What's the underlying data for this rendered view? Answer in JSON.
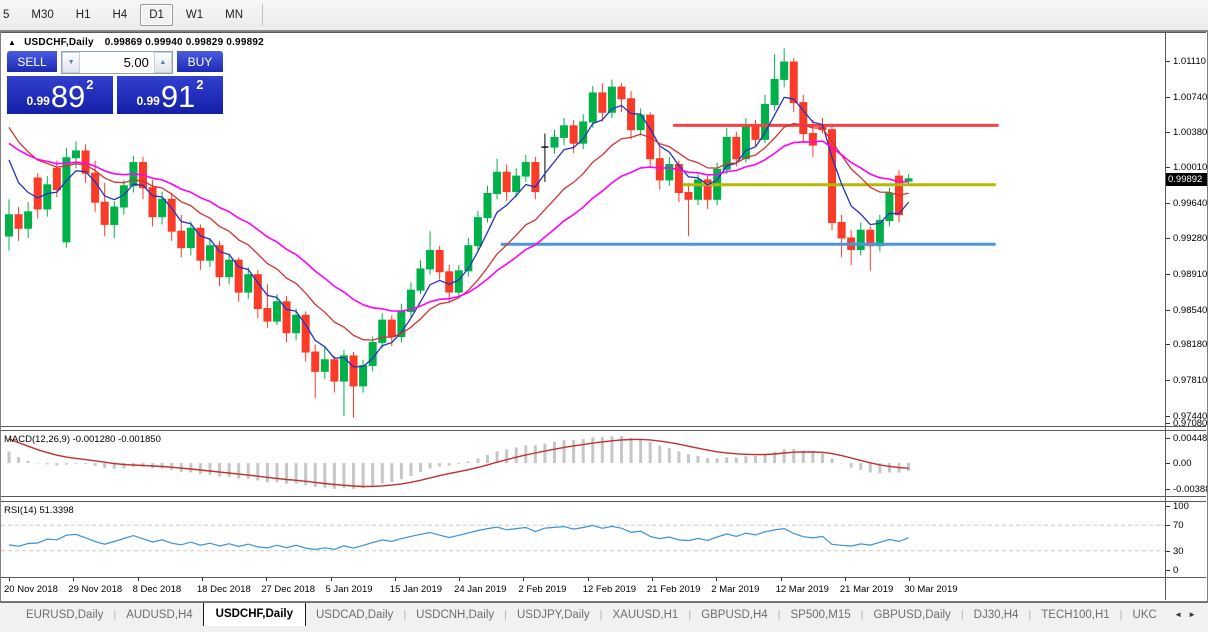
{
  "toolbar": {
    "timeframes": [
      {
        "label": "5",
        "selected": false
      },
      {
        "label": "M30",
        "selected": false
      },
      {
        "label": "H1",
        "selected": false
      },
      {
        "label": "H4",
        "selected": false
      },
      {
        "label": "D1",
        "selected": true
      },
      {
        "label": "W1",
        "selected": false
      },
      {
        "label": "MN",
        "selected": false
      }
    ]
  },
  "chart_window": {
    "collapse_icon": "▲",
    "title_symbol": "USDCHF,Daily",
    "title_ohlc": "0.99869 0.99940 0.99829 0.99892",
    "trade_widget": {
      "sell_label": "SELL",
      "buy_label": "BUY",
      "volume": "5.00",
      "spin_down_icon": "▼",
      "spin_up_icon": "▲",
      "sell_price": {
        "small": "0.99",
        "big": "89",
        "sup": "2"
      },
      "buy_price": {
        "small": "0.99",
        "big": "91",
        "sup": "2"
      }
    }
  },
  "macd_panel": {
    "label": "MACD(12,26,9) -0.001280 -0.001850",
    "axis_top": "0.004487",
    "axis_zero": "0.00",
    "axis_bottom": "-0.003883"
  },
  "rsi_panel": {
    "label": "RSI(14) 51.3398",
    "axis": [
      "100",
      "70",
      "30",
      "0"
    ]
  },
  "tabs": {
    "items": [
      "EURUSD,Daily",
      "AUDUSD,H4",
      "USDCHF,Daily",
      "USDCAD,Daily",
      "USDCNH,Daily",
      "USDJPY,Daily",
      "XAUUSD,H1",
      "GBPUSD,H4",
      "SP500,M15",
      "GBPUSD,Daily",
      "DJ30,H4",
      "TECH100,H1",
      "UKC"
    ],
    "selected": "USDCHF,Daily",
    "scroll_left_icon": "◄",
    "scroll_right_icon": "►"
  },
  "colors": {
    "bull": "#00b14a",
    "bear": "#fa3b28",
    "doji": "#000000",
    "ma_fast": "#2431c1",
    "ma_mid": "#d23434",
    "ma_slow": "#ff00ff",
    "macd_hist": "#c6c6c6",
    "macd_signal": "#c22f2f",
    "rsi": "#3b92d6",
    "hline_red": "#fb4040",
    "hline_olive": "#b4ba00",
    "hline_blue": "#4e96d9",
    "trade_blue": "#1f2db8"
  },
  "chart_data": {
    "type": "candlestick",
    "symbol": "USDCHF",
    "period": "Daily",
    "price_axis": {
      "min": 0.97335,
      "max": 1.014,
      "current": "0.99892",
      "current_price": 0.99892,
      "ticks": [
        "1.01110",
        "1.00740",
        "1.00380",
        "1.00010",
        "0.99640",
        "0.99280",
        "0.98910",
        "0.98540",
        "0.98180",
        "0.97810",
        "0.97440",
        "0.97080"
      ]
    },
    "date_ticks": [
      "20 Nov 2018",
      "29 Nov 2018",
      "8 Dec 2018",
      "18 Dec 2018",
      "27 Dec 2018",
      "5 Jan 2019",
      "15 Jan 2019",
      "24 Jan 2019",
      "2 Feb 2019",
      "12 Feb 2019",
      "21 Feb 2019",
      "2 Mar 2019",
      "12 Mar 2019",
      "21 Mar 2019",
      "30 Mar 2019"
    ],
    "moving_averages": [
      {
        "name": "fast-ma",
        "period": 5,
        "color_key": "ma_fast",
        "width": 1.3
      },
      {
        "name": "mid-ma",
        "period": 13,
        "color_key": "ma_mid",
        "width": 1.3
      },
      {
        "name": "slow-ma",
        "period": 24,
        "color_key": "ma_slow",
        "width": 1.6
      }
    ],
    "macd": {
      "fast": 12,
      "slow": 26,
      "signal": 9
    },
    "rsi": {
      "period": 14,
      "levels": [
        30,
        70
      ]
    },
    "hlines": [
      {
        "price": 1.00445,
        "color_key": "hline_red",
        "width": 3,
        "bar_start": 69.4,
        "bar_end": 103.4
      },
      {
        "price": 0.9983,
        "color_key": "hline_olive",
        "width": 3,
        "bar_start": 70.4,
        "bar_end": 103.1
      },
      {
        "price": 0.99215,
        "color_key": "hline_blue",
        "width": 3,
        "bar_start": 51.4,
        "bar_end": 103.1
      }
    ],
    "prehistory_closes": [
      0.985,
      0.9862,
      0.9875,
      0.9888,
      0.99,
      0.9912,
      0.9925,
      0.9938,
      0.995,
      0.9962,
      0.9975,
      0.9988,
      1.0,
      1.0012,
      1.0025,
      1.0038,
      1.005,
      1.0062,
      1.0075,
      1.0088,
      1.01,
      1.011,
      1.0118,
      1.0122,
      1.0125,
      1.0122,
      1.0115,
      1.008,
      1.002,
      0.996
    ],
    "candles": [
      [
        0.993,
        0.9968,
        0.9915,
        0.9952
      ],
      [
        0.9952,
        0.996,
        0.9925,
        0.9938
      ],
      [
        0.9938,
        0.9965,
        0.9928,
        0.9955
      ],
      [
        0.999,
        0.9995,
        0.9948,
        0.9958
      ],
      [
        0.9958,
        0.9992,
        0.995,
        0.9983
      ],
      [
        1.0,
        1.0008,
        0.997,
        0.9978
      ],
      [
        0.9924,
        1.0021,
        0.9918,
        1.0011
      ],
      [
        1.0011,
        1.0028,
        1.0,
        1.0018
      ],
      [
        1.0018,
        1.0025,
        0.9985,
        0.9995
      ],
      [
        0.9995,
        1.0008,
        0.9955,
        0.9965
      ],
      [
        0.9965,
        0.9985,
        0.993,
        0.9942
      ],
      [
        0.9942,
        0.9966,
        0.9928,
        0.996
      ],
      [
        0.996,
        0.9988,
        0.9952,
        0.9982
      ],
      [
        0.9982,
        1.0013,
        0.9975,
        1.0006
      ],
      [
        1.0006,
        1.0012,
        0.9968,
        0.998
      ],
      [
        0.998,
        0.9988,
        0.994,
        0.995
      ],
      [
        0.995,
        0.9976,
        0.9942,
        0.9968
      ],
      [
        0.9968,
        0.9975,
        0.9925,
        0.9935
      ],
      [
        0.9935,
        0.9952,
        0.9908,
        0.9918
      ],
      [
        0.9918,
        0.9945,
        0.991,
        0.9938
      ],
      [
        0.9938,
        0.9942,
        0.9895,
        0.9905
      ],
      [
        0.9905,
        0.9928,
        0.9898,
        0.992
      ],
      [
        0.992,
        0.9925,
        0.9878,
        0.9888
      ],
      [
        0.9888,
        0.9912,
        0.988,
        0.9905
      ],
      [
        0.9905,
        0.9908,
        0.9862,
        0.9872
      ],
      [
        0.9872,
        0.9898,
        0.9865,
        0.989
      ],
      [
        0.989,
        0.9895,
        0.9845,
        0.9855
      ],
      [
        0.9855,
        0.988,
        0.9835,
        0.9842
      ],
      [
        0.9842,
        0.987,
        0.9838,
        0.9862
      ],
      [
        0.9862,
        0.9868,
        0.982,
        0.983
      ],
      [
        0.983,
        0.9855,
        0.9822,
        0.9848
      ],
      [
        0.9848,
        0.9852,
        0.98,
        0.981
      ],
      [
        0.981,
        0.9818,
        0.9762,
        0.979
      ],
      [
        0.979,
        0.9815,
        0.9782,
        0.9802
      ],
      [
        0.9802,
        0.9806,
        0.9768,
        0.978
      ],
      [
        0.978,
        0.9812,
        0.9744,
        0.9806
      ],
      [
        0.9806,
        0.981,
        0.9742,
        0.9775
      ],
      [
        0.9775,
        0.9802,
        0.9768,
        0.9796
      ],
      [
        0.9796,
        0.9826,
        0.979,
        0.982
      ],
      [
        0.982,
        0.985,
        0.9814,
        0.9843
      ],
      [
        0.9843,
        0.9848,
        0.9816,
        0.9826
      ],
      [
        0.9826,
        0.986,
        0.982,
        0.9852
      ],
      [
        0.9852,
        0.9882,
        0.9846,
        0.9874
      ],
      [
        0.9874,
        0.9905,
        0.987,
        0.9896
      ],
      [
        0.9896,
        0.9935,
        0.989,
        0.9915
      ],
      [
        0.9915,
        0.992,
        0.9885,
        0.9893
      ],
      [
        0.9893,
        0.99,
        0.9862,
        0.9872
      ],
      [
        0.9872,
        0.99,
        0.9868,
        0.9894
      ],
      [
        0.9894,
        0.9928,
        0.9888,
        0.992
      ],
      [
        0.992,
        0.9956,
        0.9915,
        0.9949
      ],
      [
        0.9949,
        0.9982,
        0.9944,
        0.9974
      ],
      [
        0.9974,
        1.001,
        0.9968,
        0.9996
      ],
      [
        0.9996,
        1.0004,
        0.9966,
        0.9976
      ],
      [
        0.9976,
        1.0,
        0.997,
        0.9992
      ],
      [
        0.9992,
        1.0014,
        0.9986,
        1.0006
      ],
      [
        1.0006,
        1.0012,
        0.9968,
        0.9976
      ],
      [
        1.0022,
        1.0036,
        0.9986,
        1.0022
      ],
      [
        1.0022,
        1.004,
        1.0015,
        1.0032
      ],
      [
        1.0032,
        1.0052,
        1.0024,
        1.0044
      ],
      [
        1.0044,
        1.005,
        1.0016,
        1.0026
      ],
      [
        1.0026,
        1.0056,
        1.002,
        1.0048
      ],
      [
        1.0048,
        1.0085,
        1.0042,
        1.0078
      ],
      [
        1.0078,
        1.0088,
        1.0048,
        1.0058
      ],
      [
        1.0058,
        1.0092,
        1.0052,
        1.0084
      ],
      [
        1.0084,
        1.0088,
        1.0058,
        1.0072
      ],
      [
        1.0072,
        1.008,
        1.003,
        1.004
      ],
      [
        1.004,
        1.0062,
        1.0034,
        1.0055
      ],
      [
        1.0055,
        1.0058,
        1.0002,
        1.001
      ],
      [
        1.001,
        1.0022,
        0.9978,
        0.9988
      ],
      [
        0.9988,
        1.0012,
        0.9982,
        1.0004
      ],
      [
        1.0004,
        1.0008,
        0.9965,
        0.9975
      ],
      [
        0.9975,
        0.9985,
        0.993,
        0.9968
      ],
      [
        0.9968,
        0.9994,
        0.9962,
        0.9988
      ],
      [
        0.9988,
        0.9992,
        0.9958,
        0.9968
      ],
      [
        0.9968,
        1.0006,
        0.9962,
        0.9999
      ],
      [
        0.9999,
        1.0042,
        0.9994,
        1.0032
      ],
      [
        1.0032,
        1.0038,
        1.0002,
        1.001
      ],
      [
        1.001,
        1.0052,
        1.0006,
        1.0045
      ],
      [
        1.0045,
        1.005,
        1.0022,
        1.003
      ],
      [
        1.003,
        1.0076,
        1.0026,
        1.0066
      ],
      [
        1.0066,
        1.0118,
        1.006,
        1.0092
      ],
      [
        1.0092,
        1.0124,
        1.0084,
        1.011
      ],
      [
        1.011,
        1.0114,
        1.0058,
        1.0068
      ],
      [
        1.0068,
        1.0076,
        1.0028,
        1.0036
      ],
      [
        1.0036,
        1.005,
        1.0012,
        1.0024
      ],
      [
        1.0044,
        1.0052,
        1.0036,
        1.004
      ],
      [
        1.004,
        1.0046,
        0.9936,
        0.9944
      ],
      [
        0.9944,
        0.9952,
        0.9908,
        0.9928
      ],
      [
        0.9928,
        0.9936,
        0.99,
        0.9916
      ],
      [
        0.9916,
        0.9944,
        0.991,
        0.9936
      ],
      [
        0.9936,
        0.994,
        0.9894,
        0.992
      ],
      [
        0.992,
        0.9952,
        0.9914,
        0.9946
      ],
      [
        0.9946,
        0.998,
        0.994,
        0.9974
      ],
      [
        0.9992,
        0.9998,
        0.9944,
        0.9952
      ],
      [
        0.99869,
        0.9994,
        0.99829,
        0.99892
      ]
    ]
  }
}
